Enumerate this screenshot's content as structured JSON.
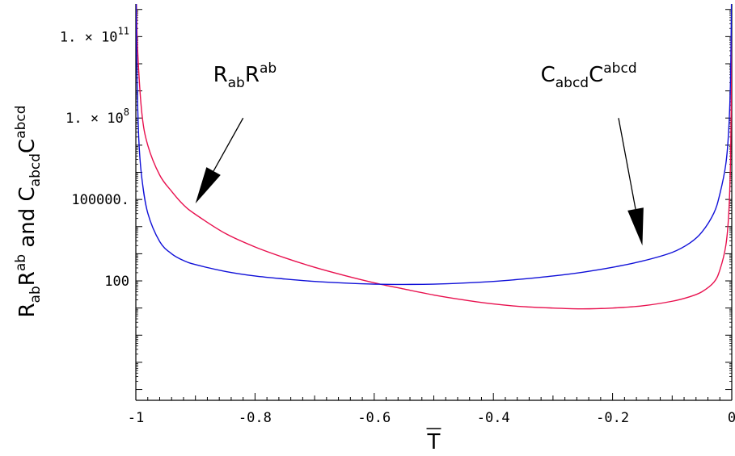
{
  "chart_data": {
    "type": "line",
    "xlabel": "T",
    "ylabel": {
      "r_base": "R",
      "r_sub": "ab",
      "r_base2": "R",
      "r_sup": "ab",
      "connector": " and ",
      "c_base": "C",
      "c_sub": "abcd",
      "c_base2": "C",
      "c_sup": "abcd"
    },
    "xlim": [
      -1,
      0
    ],
    "ylim_log10": [
      -2.4,
      12.2
    ],
    "y_scale": "log",
    "grid": false,
    "x_ticks": [
      {
        "value": -1,
        "label": "-1"
      },
      {
        "value": -0.8,
        "label": "-0.8"
      },
      {
        "value": -0.6,
        "label": "-0.6"
      },
      {
        "value": -0.4,
        "label": "-0.4"
      },
      {
        "value": -0.2,
        "label": "-0.2"
      },
      {
        "value": 0,
        "label": "0"
      }
    ],
    "y_ticks": [
      {
        "log10": 2,
        "label": "100"
      },
      {
        "log10": 5,
        "label": "100000."
      },
      {
        "log10": 8,
        "label": "1. × 10",
        "exp": "8"
      },
      {
        "log10": 11,
        "label": "1. × 10",
        "exp": "11"
      }
    ],
    "series": [
      {
        "key": "ricci",
        "color": "#e8104e",
        "points_log10": [
          [
            -0.999,
            12.2
          ],
          [
            -0.997,
            10.5
          ],
          [
            -0.99,
            8.2
          ],
          [
            -0.98,
            7.0
          ],
          [
            -0.96,
            5.9
          ],
          [
            -0.94,
            5.3
          ],
          [
            -0.92,
            4.8
          ],
          [
            -0.9,
            4.45
          ],
          [
            -0.85,
            3.75
          ],
          [
            -0.8,
            3.25
          ],
          [
            -0.75,
            2.85
          ],
          [
            -0.7,
            2.5
          ],
          [
            -0.65,
            2.2
          ],
          [
            -0.6,
            1.93
          ],
          [
            -0.55,
            1.7
          ],
          [
            -0.5,
            1.48
          ],
          [
            -0.45,
            1.3
          ],
          [
            -0.4,
            1.15
          ],
          [
            -0.35,
            1.05
          ],
          [
            -0.3,
            1.0
          ],
          [
            -0.25,
            0.97
          ],
          [
            -0.2,
            1.0
          ],
          [
            -0.15,
            1.08
          ],
          [
            -0.1,
            1.25
          ],
          [
            -0.07,
            1.42
          ],
          [
            -0.05,
            1.6
          ],
          [
            -0.03,
            1.95
          ],
          [
            -0.02,
            2.4
          ],
          [
            -0.01,
            3.3
          ],
          [
            -0.005,
            4.5
          ],
          [
            -0.002,
            6.5
          ],
          [
            -0.0005,
            9.5
          ],
          [
            -0.0001,
            12.2
          ]
        ]
      },
      {
        "key": "weyl",
        "color": "#1010d8",
        "points_log10": [
          [
            -0.9995,
            12.2
          ],
          [
            -0.998,
            9.5
          ],
          [
            -0.995,
            7.2
          ],
          [
            -0.99,
            5.8
          ],
          [
            -0.98,
            4.5
          ],
          [
            -0.96,
            3.45
          ],
          [
            -0.94,
            3.0
          ],
          [
            -0.92,
            2.75
          ],
          [
            -0.9,
            2.6
          ],
          [
            -0.85,
            2.35
          ],
          [
            -0.8,
            2.18
          ],
          [
            -0.75,
            2.07
          ],
          [
            -0.7,
            1.98
          ],
          [
            -0.65,
            1.92
          ],
          [
            -0.6,
            1.88
          ],
          [
            -0.55,
            1.87
          ],
          [
            -0.5,
            1.88
          ],
          [
            -0.45,
            1.92
          ],
          [
            -0.4,
            1.98
          ],
          [
            -0.35,
            2.07
          ],
          [
            -0.3,
            2.18
          ],
          [
            -0.25,
            2.32
          ],
          [
            -0.2,
            2.5
          ],
          [
            -0.15,
            2.73
          ],
          [
            -0.1,
            3.05
          ],
          [
            -0.07,
            3.4
          ],
          [
            -0.05,
            3.8
          ],
          [
            -0.03,
            4.5
          ],
          [
            -0.02,
            5.2
          ],
          [
            -0.01,
            6.3
          ],
          [
            -0.005,
            7.6
          ],
          [
            -0.002,
            9.5
          ],
          [
            -0.0005,
            12.2
          ]
        ]
      }
    ],
    "annotations": [
      {
        "key": "ricci-label",
        "base": "R",
        "sub": "ab",
        "base2": "R",
        "sup": "ab",
        "anchor_data": [
          -0.817,
          9.35
        ],
        "arrow_from": [
          -0.82,
          8.0
        ],
        "arrow_to": [
          -0.9,
          4.85
        ]
      },
      {
        "key": "weyl-label",
        "base": "C",
        "sub": "abcd",
        "base2": "C",
        "sup": "abcd",
        "anchor_data": [
          -0.24,
          9.35
        ],
        "arrow_from": [
          -0.19,
          8.0
        ],
        "arrow_to": [
          -0.15,
          3.3
        ]
      }
    ]
  }
}
